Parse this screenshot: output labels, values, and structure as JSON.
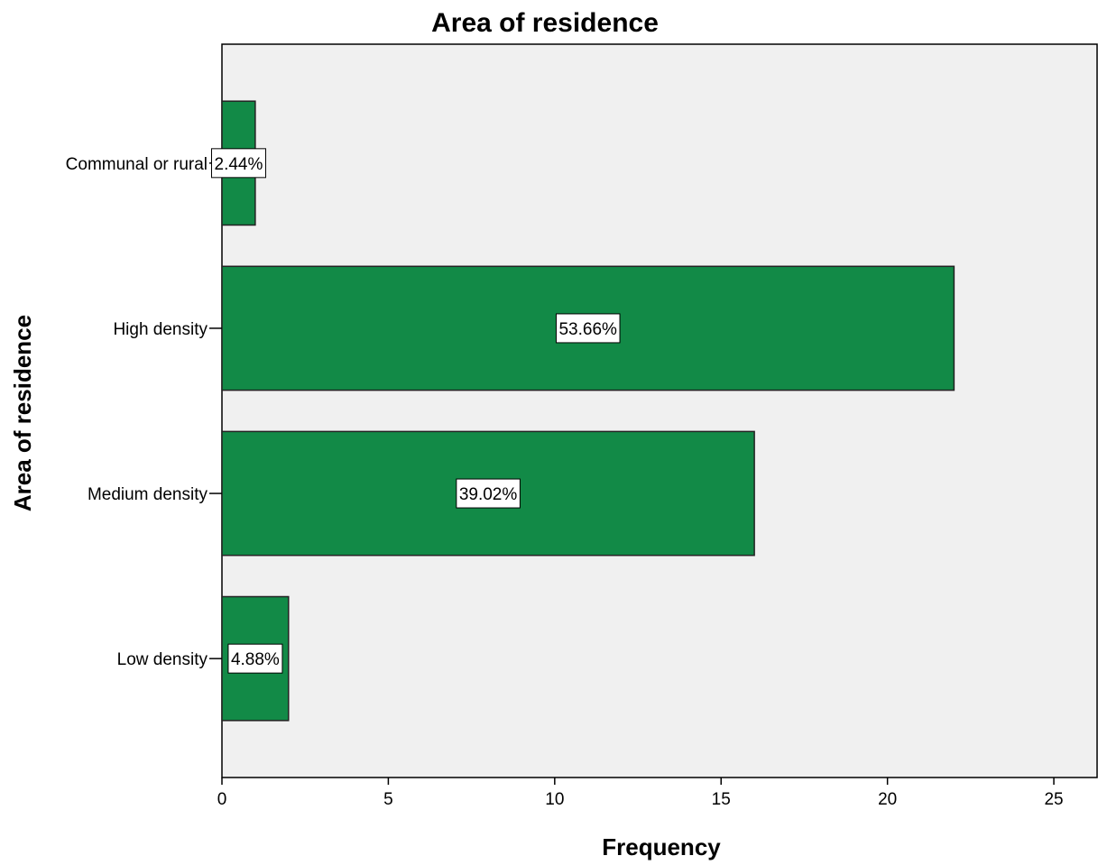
{
  "colors": {
    "bar": "#128a47",
    "plot_background": "#f0f0f0"
  },
  "chart_data": {
    "type": "bar",
    "orientation": "horizontal",
    "title": "Area of residence",
    "xlabel": "Frequency",
    "ylabel": "Area of residence",
    "categories": [
      "Communal or rural",
      "High density",
      "Medium density",
      "Low density"
    ],
    "values": [
      1,
      22,
      16,
      2
    ],
    "data_labels": [
      "2.44%",
      "53.66%",
      "39.02%",
      "4.88%"
    ],
    "xlim": [
      0,
      26.3
    ],
    "xticks": [
      0,
      5,
      10,
      15,
      20,
      25
    ],
    "grid": false
  }
}
